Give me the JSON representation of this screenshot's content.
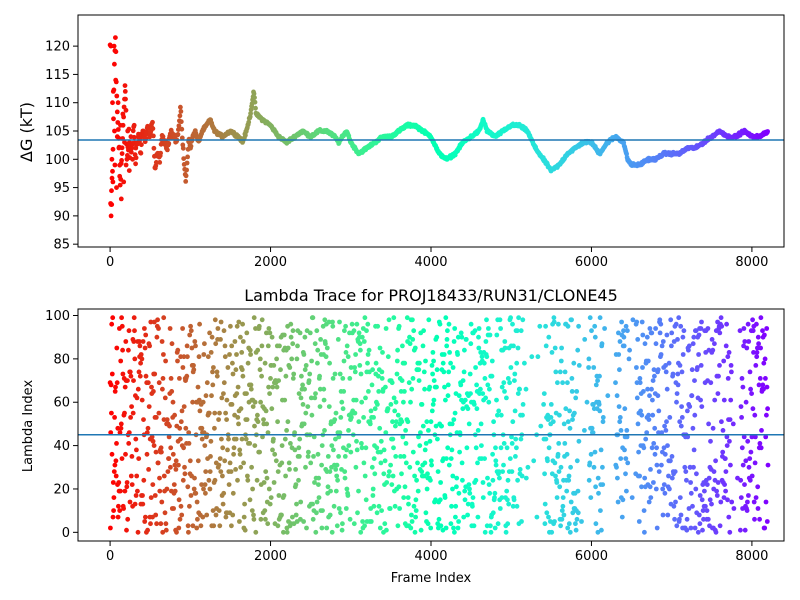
{
  "chart_data": [
    {
      "type": "scatter",
      "title": "",
      "xlabel": "",
      "ylabel": "ΔG (kT)",
      "xlim": [
        -400,
        8400
      ],
      "ylim": [
        84.5,
        125.5
      ],
      "xticks": [
        0,
        2000,
        4000,
        6000,
        8000
      ],
      "yticks": [
        85,
        90,
        95,
        100,
        105,
        110,
        115,
        120
      ],
      "xtick_labels": [
        "0",
        "2000",
        "4000",
        "6000",
        "8000"
      ],
      "ytick_labels": [
        "85",
        "90",
        "95",
        "100",
        "105",
        "110",
        "115",
        "120"
      ],
      "hline": 103.4,
      "hline_color": "#1f77b4",
      "colormap": "rainbow (color reversed with frame index: red at 0, violet at 8200)",
      "n_frames": 8200,
      "series": [
        {
          "trace_points": [
            [
              0,
              120
            ],
            [
              5,
              90
            ],
            [
              15,
              92
            ],
            [
              25,
              97
            ],
            [
              35,
              100
            ],
            [
              45,
              110
            ],
            [
              55,
              117
            ],
            [
              65,
              123
            ],
            [
              75,
              115
            ],
            [
              90,
              108
            ],
            [
              110,
              104
            ],
            [
              130,
              96
            ],
            [
              150,
              102
            ],
            [
              170,
              108
            ],
            [
              190,
              112
            ],
            [
              210,
              100
            ],
            [
              230,
              103
            ],
            [
              260,
              101
            ],
            [
              290,
              105
            ],
            [
              320,
              101
            ],
            [
              350,
              104
            ],
            [
              380,
              102
            ],
            [
              410,
              105
            ],
            [
              440,
              103
            ],
            [
              470,
              106
            ],
            [
              500,
              104
            ],
            [
              530,
              107
            ],
            [
              560,
              98
            ],
            [
              590,
              101
            ],
            [
              620,
              100
            ],
            [
              650,
              104
            ],
            [
              680,
              103
            ],
            [
              710,
              102
            ],
            [
              740,
              104
            ],
            [
              770,
              105
            ],
            [
              800,
              104
            ],
            [
              830,
              103
            ],
            [
              860,
              106
            ],
            [
              880,
              109
            ],
            [
              900,
              104
            ],
            [
              920,
              100
            ],
            [
              940,
              96
            ],
            [
              960,
              99
            ],
            [
              980,
              104
            ],
            [
              1000,
              102
            ],
            [
              1030,
              104
            ],
            [
              1060,
              105
            ],
            [
              1100,
              103
            ],
            [
              1150,
              105
            ],
            [
              1200,
              106
            ],
            [
              1250,
              107
            ],
            [
              1300,
              105
            ],
            [
              1400,
              104
            ],
            [
              1500,
              105
            ],
            [
              1600,
              104
            ],
            [
              1650,
              103
            ],
            [
              1700,
              105
            ],
            [
              1750,
              108
            ],
            [
              1790,
              112
            ],
            [
              1820,
              108
            ],
            [
              1900,
              107
            ],
            [
              2000,
              106
            ],
            [
              2100,
              104
            ],
            [
              2200,
              103
            ],
            [
              2300,
              104
            ],
            [
              2400,
              105
            ],
            [
              2500,
              104
            ],
            [
              2600,
              105
            ],
            [
              2700,
              105
            ],
            [
              2800,
              104
            ],
            [
              2850,
              103
            ],
            [
              2900,
              104
            ],
            [
              2950,
              105
            ],
            [
              3000,
              103
            ],
            [
              3050,
              102
            ],
            [
              3100,
              101
            ],
            [
              3200,
              102
            ],
            [
              3300,
              103
            ],
            [
              3400,
              104
            ],
            [
              3500,
              104
            ],
            [
              3600,
              105
            ],
            [
              3700,
              106
            ],
            [
              3800,
              106
            ],
            [
              3900,
              105
            ],
            [
              4000,
              104
            ],
            [
              4100,
              101
            ],
            [
              4200,
              100
            ],
            [
              4300,
              101
            ],
            [
              4400,
              103
            ],
            [
              4500,
              104
            ],
            [
              4600,
              105
            ],
            [
              4650,
              107
            ],
            [
              4700,
              105
            ],
            [
              4800,
              104
            ],
            [
              4900,
              105
            ],
            [
              5000,
              106
            ],
            [
              5100,
              106
            ],
            [
              5200,
              105
            ],
            [
              5300,
              102
            ],
            [
              5400,
              100
            ],
            [
              5500,
              98
            ],
            [
              5600,
              99
            ],
            [
              5700,
              101
            ],
            [
              5800,
              102
            ],
            [
              5900,
              103
            ],
            [
              6000,
              103
            ],
            [
              6100,
              101
            ],
            [
              6200,
              103
            ],
            [
              6300,
              104
            ],
            [
              6400,
              103
            ],
            [
              6450,
              100
            ],
            [
              6500,
              99
            ],
            [
              6600,
              99
            ],
            [
              6700,
              100
            ],
            [
              6800,
              100
            ],
            [
              6900,
              101
            ],
            [
              7000,
              101
            ],
            [
              7100,
              101
            ],
            [
              7200,
              102
            ],
            [
              7300,
              102
            ],
            [
              7400,
              103
            ],
            [
              7500,
              104
            ],
            [
              7600,
              105
            ],
            [
              7700,
              104
            ],
            [
              7800,
              104
            ],
            [
              7900,
              105
            ],
            [
              8000,
              104
            ],
            [
              8100,
              104
            ],
            [
              8200,
              105
            ]
          ],
          "early_scatter_points": [
            [
              10,
              120
            ],
            [
              12,
              90
            ],
            [
              20,
              92
            ],
            [
              22,
              100
            ],
            [
              30,
              110
            ],
            [
              35,
              96
            ],
            [
              40,
              112
            ],
            [
              50,
              120
            ],
            [
              55,
              105
            ],
            [
              60,
              99
            ],
            [
              70,
              114
            ],
            [
              80,
              95
            ],
            [
              90,
              104
            ],
            [
              100,
              110
            ],
            [
              110,
              102
            ],
            [
              120,
              97
            ],
            [
              130,
              106
            ],
            [
              140,
              93
            ],
            [
              150,
              101
            ],
            [
              160,
              108
            ],
            [
              170,
              96
            ],
            [
              180,
              103
            ],
            [
              190,
              112
            ],
            [
              200,
              99
            ],
            [
              220,
              105
            ],
            [
              240,
              98
            ],
            [
              260,
              104
            ],
            [
              280,
              100
            ],
            [
              300,
              106
            ],
            [
              320,
              102
            ]
          ]
        }
      ]
    },
    {
      "type": "scatter",
      "title": "Lambda Trace for PROJ18433/RUN31/CLONE45",
      "xlabel": "Frame Index",
      "ylabel": "Lambda Index",
      "xlim": [
        -400,
        8400
      ],
      "ylim": [
        -4,
        103
      ],
      "xticks": [
        0,
        2000,
        4000,
        6000,
        8000
      ],
      "yticks": [
        0,
        20,
        40,
        60,
        80,
        100
      ],
      "xtick_labels": [
        "0",
        "2000",
        "4000",
        "6000",
        "8000"
      ],
      "ytick_labels": [
        "0",
        "20",
        "40",
        "60",
        "80",
        "100"
      ],
      "hline": 45,
      "hline_color": "#1f77b4",
      "colormap": "rainbow (color reversed with frame index: red at 0, violet at 8200)",
      "n_frames": 8200,
      "lambda_range": [
        0,
        99
      ],
      "sparse_gaps": [
        [
          5150,
          5400
        ],
        [
          5850,
          5960
        ],
        [
          6150,
          6300
        ],
        [
          6450,
          6550
        ],
        [
          7750,
          7850
        ]
      ]
    }
  ]
}
